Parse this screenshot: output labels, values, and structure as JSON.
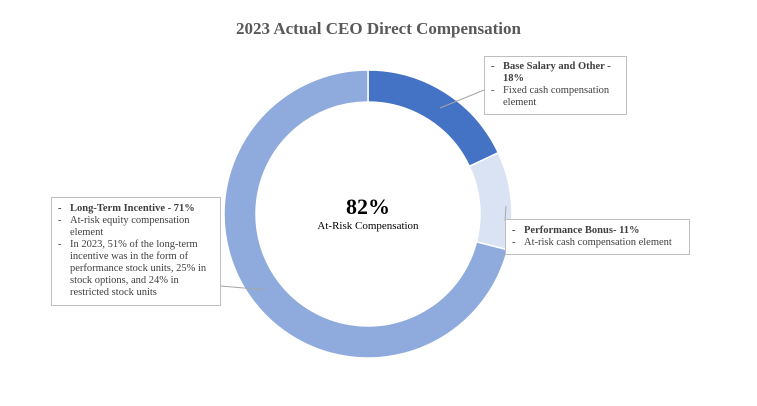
{
  "chart_data": {
    "type": "pie",
    "style": "donut",
    "title": "2023 Actual CEO Direct Compensation",
    "slices": [
      {
        "label": "Base Salary and Other",
        "value": 18,
        "color": "#4472C4"
      },
      {
        "label": "Performance Bonus",
        "value": 11,
        "color": "#DAE3F3"
      },
      {
        "label": "Long-Term Incentive",
        "value": 71,
        "color": "#8FAADC"
      }
    ],
    "center": {
      "value": "82%",
      "label": "At-Risk Compensation"
    },
    "callouts": {
      "base": {
        "heading": "Base Salary and Other - 18%",
        "bullets": [
          "Fixed cash compensation element"
        ]
      },
      "performance": {
        "heading": "Performance Bonus- 11%",
        "bullets": [
          "At-risk cash compensation element"
        ]
      },
      "lti": {
        "heading": "Long-Term Incentive - 71%",
        "bullets": [
          "At-risk equity compensation element",
          "In 2023, 51% of the long-term incentive was in the form of performance stock units, 25% in stock options, and 24% in restricted stock units"
        ]
      }
    }
  }
}
